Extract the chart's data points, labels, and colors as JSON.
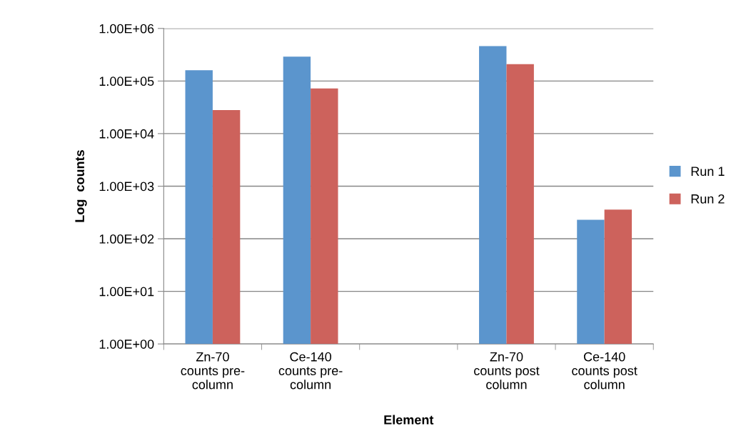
{
  "chart_data": {
    "type": "bar",
    "xlabel": "Element",
    "ylabel": "Log  counts",
    "categories": [
      "Zn-70\ncounts pre-\ncolumn",
      "Ce-140\ncounts pre-\ncolumn",
      null,
      "Zn-70\ncounts post\ncolumn",
      "Ce-140\ncounts post\ncolumn"
    ],
    "series": [
      {
        "name": "Run 1",
        "color": "#5b95cd",
        "values": [
          160000,
          290000,
          null,
          460000,
          230
        ]
      },
      {
        "name": "Run 2",
        "color": "#cd625c",
        "values": [
          28000,
          72000,
          null,
          210000,
          360
        ]
      }
    ],
    "log": true,
    "ylim": [
      1,
      1000000
    ],
    "yticks": [
      {
        "value": 1,
        "label": "1.00E+00"
      },
      {
        "value": 10,
        "label": "1.00E+01"
      },
      {
        "value": 100,
        "label": "1.00E+02"
      },
      {
        "value": 1000,
        "label": "1.00E+03"
      },
      {
        "value": 10000,
        "label": "1.00E+04"
      },
      {
        "value": 100000,
        "label": "1.00E+05"
      },
      {
        "value": 1000000,
        "label": "1.00E+06"
      }
    ],
    "grid": "y",
    "legend": "right"
  }
}
